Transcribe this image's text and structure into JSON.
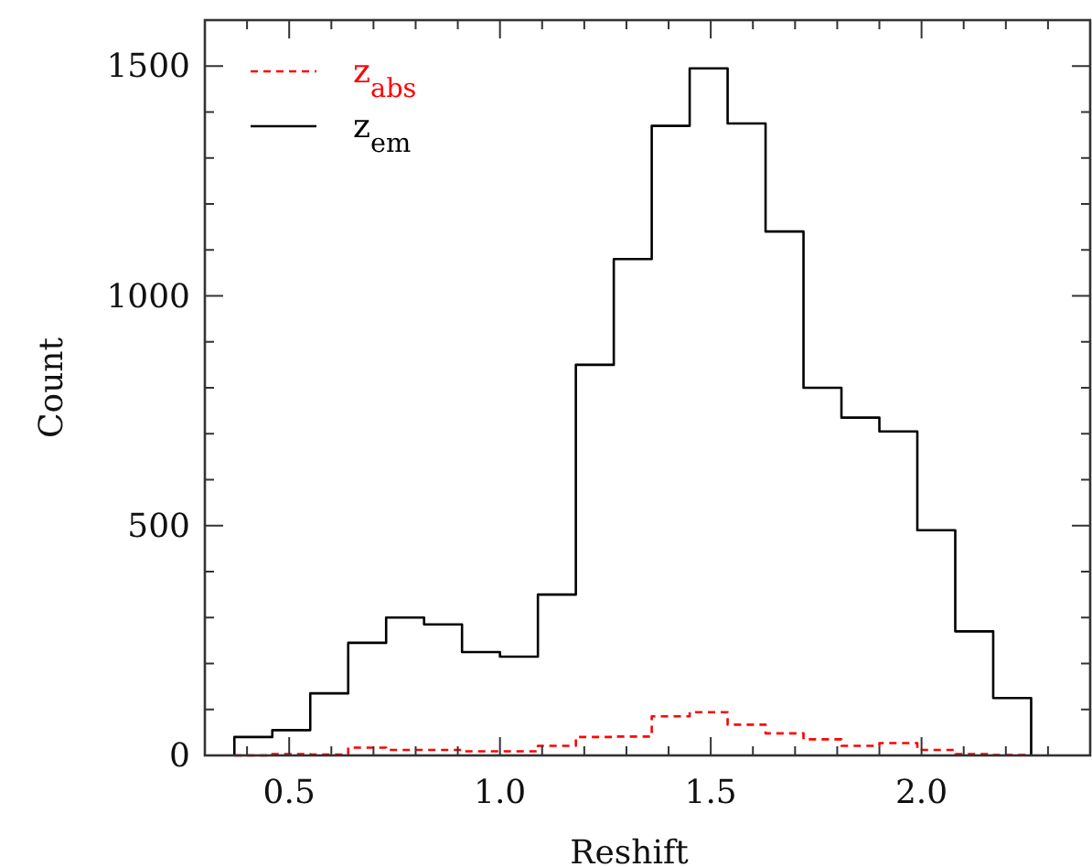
{
  "chart_data": {
    "type": "histogram",
    "xlabel": "Reshift",
    "ylabel": "Count",
    "bins": [
      0.37,
      0.46,
      0.55,
      0.64,
      0.73,
      0.82,
      0.91,
      1.0,
      1.09,
      1.18,
      1.27,
      1.36,
      1.45,
      1.54,
      1.63,
      1.72,
      1.81,
      1.9,
      1.99,
      2.08,
      2.17,
      2.26
    ],
    "series": [
      {
        "name": "z$_{abs}$",
        "color": "#ff0000",
        "line_style": "dashed",
        "values": [
          0,
          3,
          2,
          17,
          12,
          12,
          9,
          9,
          21,
          40,
          41,
          85,
          94,
          67,
          48,
          35,
          21,
          27,
          12,
          3,
          1
        ]
      },
      {
        "name": "z$_{em}$",
        "color": "#000000",
        "line_style": "solid",
        "values": [
          40,
          55,
          135,
          245,
          300,
          285,
          225,
          215,
          350,
          850,
          1080,
          1370,
          1495,
          1375,
          1140,
          800,
          735,
          705,
          490,
          270,
          125
        ]
      }
    ],
    "xlim": [
      0.3,
      2.4
    ],
    "xticks": [
      {
        "value": 0.4,
        "label": null
      },
      {
        "value": 0.5,
        "label": "0.5"
      },
      {
        "value": 0.6,
        "label": null
      },
      {
        "value": 0.7,
        "label": null
      },
      {
        "value": 0.8,
        "label": null
      },
      {
        "value": 0.9,
        "label": null
      },
      {
        "value": 1.0,
        "label": "1.0"
      },
      {
        "value": 1.1,
        "label": null
      },
      {
        "value": 1.2,
        "label": null
      },
      {
        "value": 1.3,
        "label": null
      },
      {
        "value": 1.4,
        "label": null
      },
      {
        "value": 1.5,
        "label": "1.5"
      },
      {
        "value": 1.6,
        "label": null
      },
      {
        "value": 1.7,
        "label": null
      },
      {
        "value": 1.8,
        "label": null
      },
      {
        "value": 1.9,
        "label": null
      },
      {
        "value": 2.0,
        "label": "2.0"
      },
      {
        "value": 2.1,
        "label": null
      },
      {
        "value": 2.2,
        "label": null
      },
      {
        "value": 2.3,
        "label": null
      }
    ],
    "ylim": [
      0,
      1600
    ],
    "yticks": [
      0,
      {
        "value": 100,
        "label": null
      },
      {
        "value": 200,
        "label": null
      },
      {
        "value": 300,
        "label": null
      },
      {
        "value": 400,
        "label": null
      },
      500,
      {
        "value": 600,
        "label": null
      },
      {
        "value": 700,
        "label": null
      },
      {
        "value": 800,
        "label": null
      },
      {
        "value": 900,
        "label": null
      },
      1000,
      {
        "value": 1100,
        "label": null
      },
      {
        "value": 1200,
        "label": null
      },
      {
        "value": 1300,
        "label": null
      },
      {
        "value": 1400,
        "label": null
      },
      1500
    ],
    "legend": "top left"
  }
}
